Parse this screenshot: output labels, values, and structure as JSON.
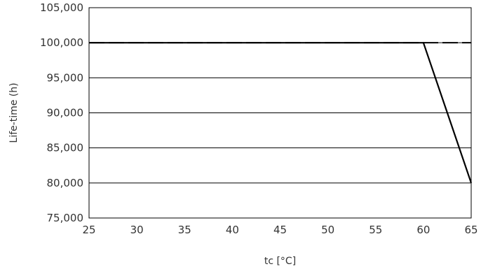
{
  "chart_data": {
    "type": "line",
    "title": "",
    "xlabel": "tc [°C]",
    "ylabel": "Life-time (h)",
    "xlim": [
      25,
      65
    ],
    "ylim": [
      75000,
      105000
    ],
    "x_ticks": [
      25,
      30,
      35,
      40,
      45,
      50,
      55,
      60,
      65
    ],
    "y_ticks": [
      75000,
      80000,
      85000,
      90000,
      95000,
      100000,
      105000
    ],
    "x_tick_labels": [
      "25",
      "30",
      "35",
      "40",
      "45",
      "50",
      "55",
      "60",
      "65"
    ],
    "y_tick_labels": [
      "75,000",
      "80,000",
      "85,000",
      "90,000",
      "95,000",
      "100,000",
      "105,000"
    ],
    "grid": "horizontal",
    "series": [
      {
        "style": "solid",
        "color": "#000000",
        "x": [
          25,
          60,
          65
        ],
        "y": [
          100000,
          100000,
          80000
        ]
      },
      {
        "style": "dashed",
        "color": "#000000",
        "x": [
          25,
          65
        ],
        "y": [
          100000,
          100000
        ]
      }
    ]
  }
}
